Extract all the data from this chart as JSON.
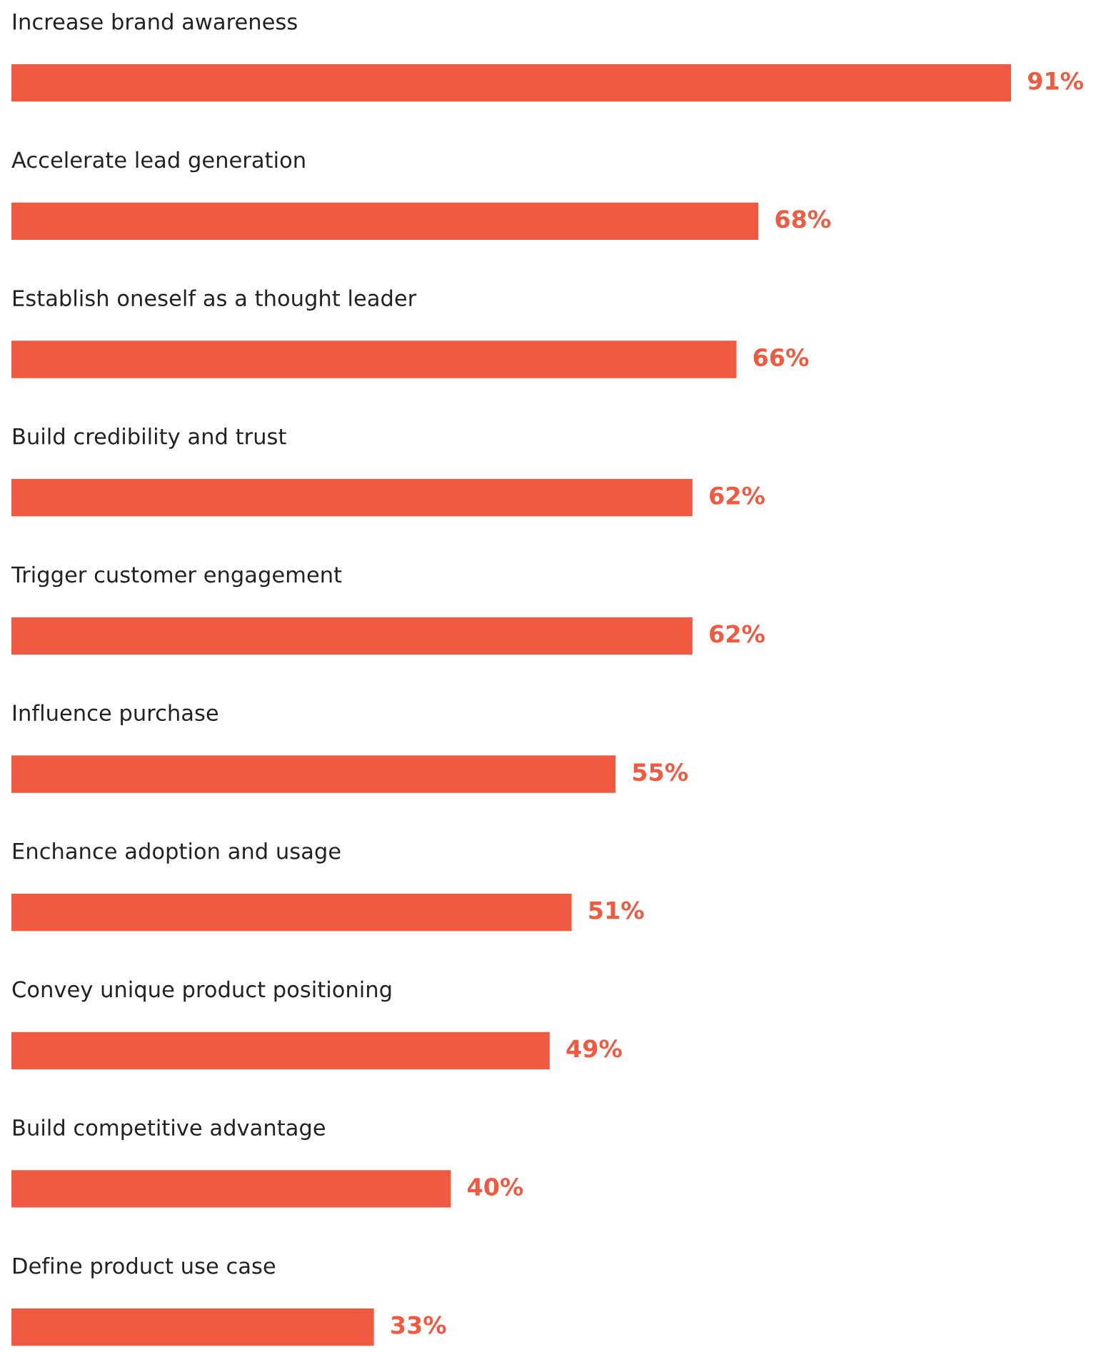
{
  "chart_data": {
    "type": "bar",
    "orientation": "horizontal",
    "categories": [
      "Increase brand awareness",
      "Accelerate lead generation",
      "Establish oneself as a thought leader",
      "Build credibility and trust",
      "Trigger customer engagement",
      "Influence purchase",
      "Enchance adoption and usage",
      "Convey unique product positioning",
      "Build competitive advantage",
      "Define product use case"
    ],
    "values": [
      91,
      68,
      66,
      62,
      62,
      55,
      51,
      49,
      40,
      33
    ],
    "value_labels": [
      "91%",
      "68%",
      "66%",
      "62%",
      "62%",
      "55%",
      "51%",
      "49%",
      "40%",
      "33%"
    ],
    "color": "#f05a40"
  }
}
